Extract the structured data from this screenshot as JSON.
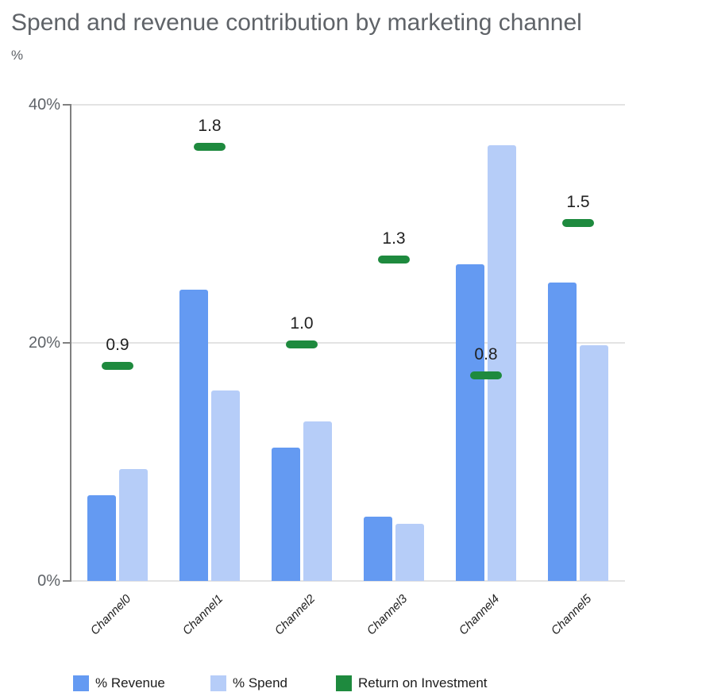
{
  "header": {
    "title": "Spend and revenue contribution by marketing channel",
    "axis_unit_label": "%"
  },
  "chart_data": {
    "type": "bar",
    "title": "Spend and revenue contribution by marketing channel",
    "ylabel": "%",
    "xlabel": "",
    "ylim": [
      0,
      40
    ],
    "grid": true,
    "legend_position": "bottom",
    "yticks": [
      {
        "value": 0,
        "label": "0%"
      },
      {
        "value": 20,
        "label": "20%"
      },
      {
        "value": 40,
        "label": "40%"
      }
    ],
    "categories": [
      "Channel0",
      "Channel1",
      "Channel2",
      "Channel3",
      "Channel4",
      "Channel5"
    ],
    "series": [
      {
        "name": "% Revenue",
        "type": "bar",
        "color": "#649af2",
        "values": [
          7.2,
          24.5,
          11.2,
          5.4,
          26.6,
          25.1
        ]
      },
      {
        "name": "% Spend",
        "type": "bar",
        "color": "#b6cdf8",
        "values": [
          9.4,
          16.0,
          13.4,
          4.8,
          36.6,
          19.8
        ]
      },
      {
        "name": "Return on Investment",
        "type": "dash-marker",
        "color": "#1e8a3e",
        "values": [
          0.9,
          1.8,
          1.0,
          1.3,
          0.8,
          1.5
        ],
        "plotted_pct": [
          18.1,
          36.5,
          19.9,
          27.0,
          17.3,
          30.1
        ],
        "value_labels_shown": true
      }
    ]
  },
  "colors": {
    "revenue_bar": "#649af2",
    "spend_bar": "#b6cdf8",
    "roi_marker": "#1e8a3e",
    "gridline": "#e3e3e3",
    "axis": "#808080",
    "axis_text": "#5f6368",
    "title_text": "#5f6368",
    "label_text": "#212121"
  }
}
